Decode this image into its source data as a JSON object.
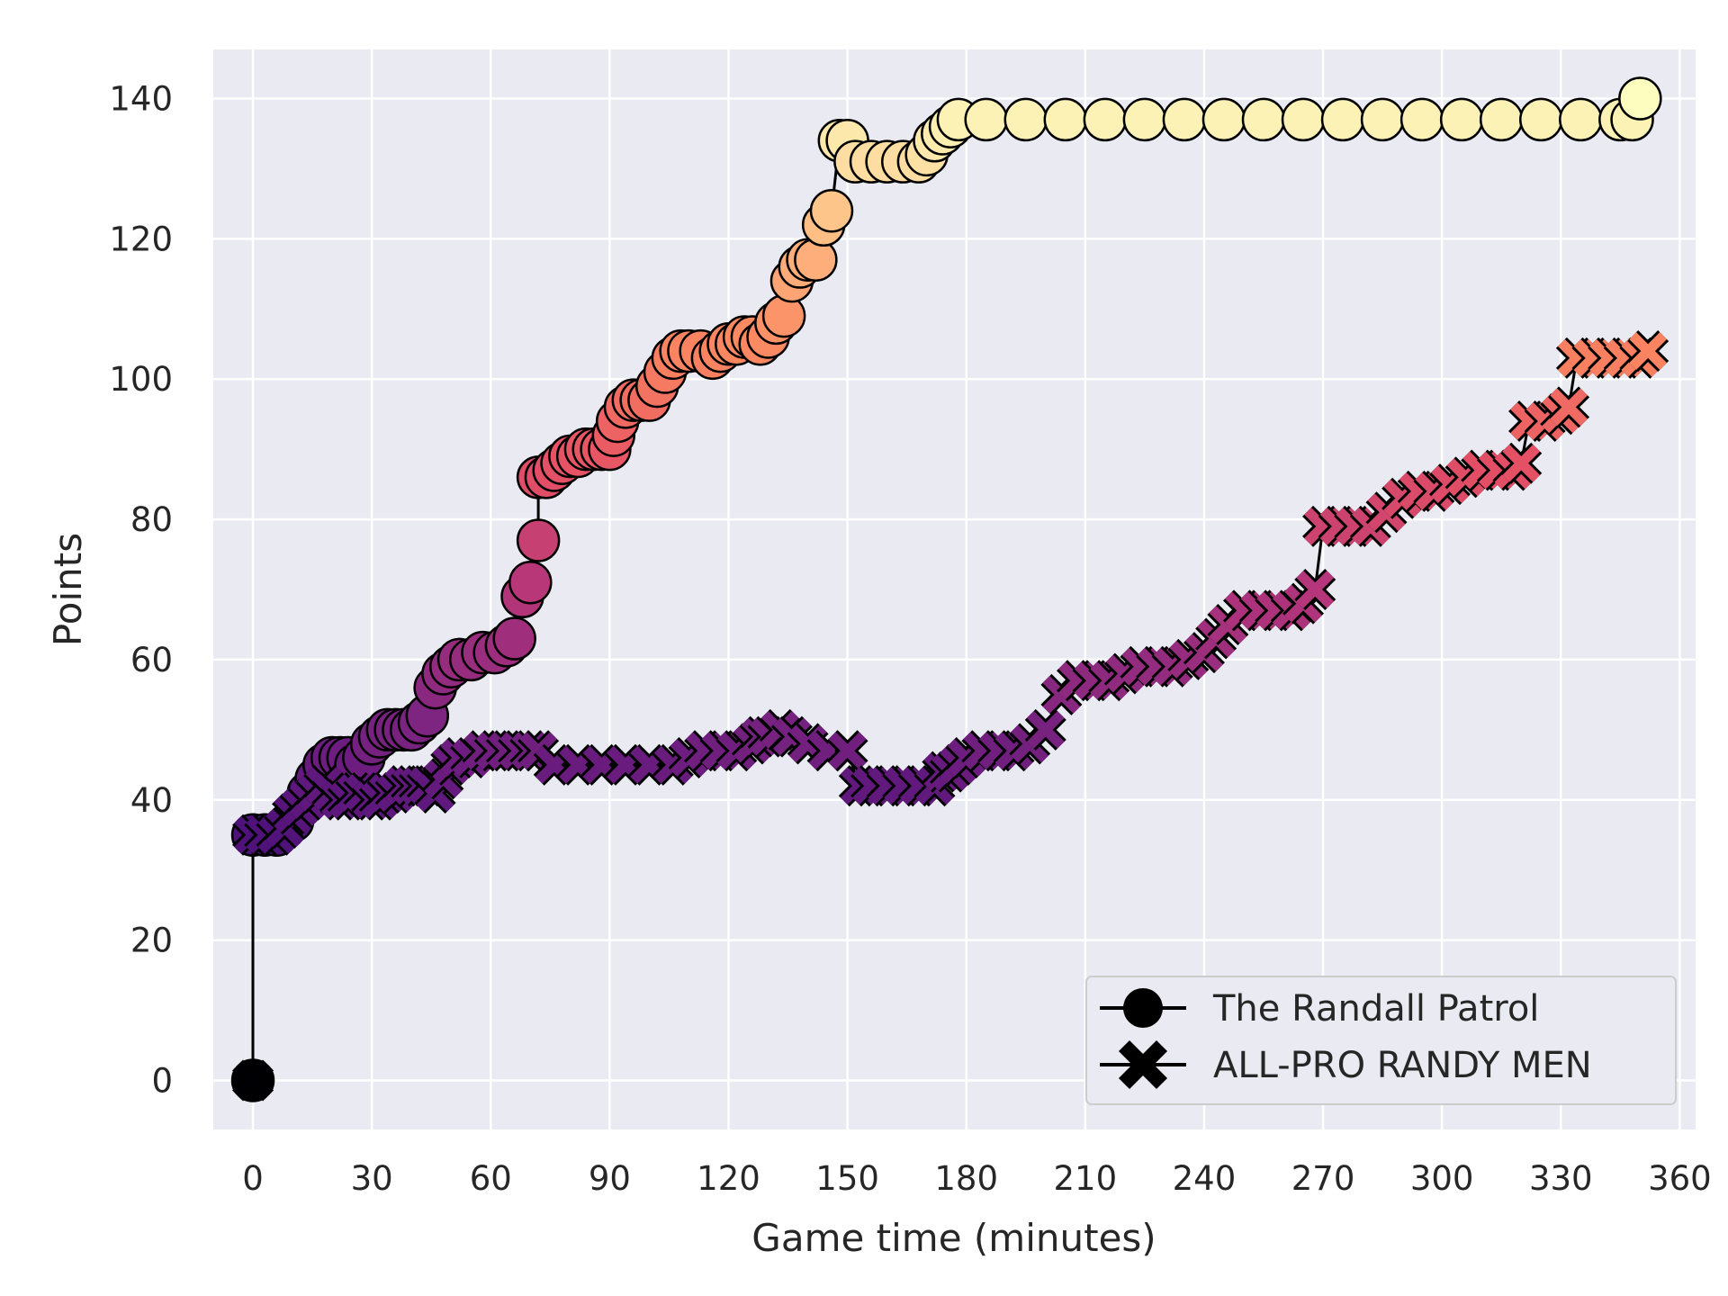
{
  "chart_data": {
    "type": "scatter",
    "xlabel": "Game time (minutes)",
    "ylabel": "Points",
    "xlim": [
      -10,
      364
    ],
    "ylim": [
      -7,
      147
    ],
    "xticks": [
      0,
      30,
      60,
      90,
      120,
      150,
      180,
      210,
      240,
      270,
      300,
      330,
      360
    ],
    "yticks": [
      0,
      20,
      40,
      60,
      80,
      100,
      120,
      140
    ],
    "grid": true,
    "legend_position": "bottom-right",
    "colormap": "magma",
    "colors": {
      "background": "#eaeaf2",
      "grid": "#ffffff",
      "marker_edge": "#000000"
    },
    "series": [
      {
        "name": "The Randall Patrol",
        "marker": "circle",
        "points": [
          [
            0,
            0
          ],
          [
            0,
            35
          ],
          [
            3,
            35
          ],
          [
            6,
            35
          ],
          [
            8,
            36
          ],
          [
            10,
            37
          ],
          [
            12,
            39
          ],
          [
            14,
            41
          ],
          [
            16,
            43
          ],
          [
            18,
            45
          ],
          [
            20,
            46
          ],
          [
            22,
            46
          ],
          [
            24,
            46
          ],
          [
            26,
            45
          ],
          [
            28,
            46
          ],
          [
            30,
            48
          ],
          [
            32,
            49
          ],
          [
            34,
            50
          ],
          [
            36,
            50
          ],
          [
            38,
            50
          ],
          [
            40,
            50
          ],
          [
            42,
            51
          ],
          [
            44,
            52
          ],
          [
            46,
            56
          ],
          [
            48,
            58
          ],
          [
            50,
            59
          ],
          [
            52,
            60
          ],
          [
            55,
            60
          ],
          [
            58,
            61
          ],
          [
            61,
            61
          ],
          [
            64,
            62
          ],
          [
            66,
            63
          ],
          [
            68,
            69
          ],
          [
            70,
            71
          ],
          [
            72,
            77
          ],
          [
            72,
            86
          ],
          [
            74,
            86
          ],
          [
            76,
            87
          ],
          [
            78,
            88
          ],
          [
            80,
            89
          ],
          [
            82,
            89
          ],
          [
            84,
            90
          ],
          [
            86,
            90
          ],
          [
            88,
            90
          ],
          [
            90,
            90
          ],
          [
            91,
            92
          ],
          [
            92,
            94
          ],
          [
            94,
            96
          ],
          [
            96,
            97
          ],
          [
            98,
            97
          ],
          [
            100,
            97
          ],
          [
            102,
            99
          ],
          [
            104,
            101
          ],
          [
            106,
            103
          ],
          [
            108,
            104
          ],
          [
            110,
            104
          ],
          [
            113,
            104
          ],
          [
            116,
            103
          ],
          [
            118,
            104
          ],
          [
            120,
            105
          ],
          [
            122,
            105
          ],
          [
            124,
            106
          ],
          [
            126,
            106
          ],
          [
            128,
            105
          ],
          [
            130,
            106
          ],
          [
            132,
            108
          ],
          [
            134,
            109
          ],
          [
            136,
            114
          ],
          [
            138,
            116
          ],
          [
            140,
            117
          ],
          [
            142,
            117
          ],
          [
            144,
            122
          ],
          [
            146,
            124
          ],
          [
            148,
            134
          ],
          [
            150,
            134
          ],
          [
            152,
            131
          ],
          [
            156,
            131
          ],
          [
            160,
            131
          ],
          [
            164,
            131
          ],
          [
            168,
            131
          ],
          [
            170,
            132
          ],
          [
            172,
            134
          ],
          [
            174,
            135
          ],
          [
            176,
            136
          ],
          [
            178,
            137
          ],
          [
            185,
            137
          ],
          [
            195,
            137
          ],
          [
            205,
            137
          ],
          [
            215,
            137
          ],
          [
            225,
            137
          ],
          [
            235,
            137
          ],
          [
            245,
            137
          ],
          [
            255,
            137
          ],
          [
            265,
            137
          ],
          [
            275,
            137
          ],
          [
            285,
            137
          ],
          [
            295,
            137
          ],
          [
            305,
            137
          ],
          [
            315,
            137
          ],
          [
            325,
            137
          ],
          [
            335,
            137
          ],
          [
            345,
            137
          ],
          [
            348,
            137
          ],
          [
            350,
            140
          ]
        ]
      },
      {
        "name": "ALL-PRO RANDY MEN",
        "marker": "x",
        "points": [
          [
            0,
            0
          ],
          [
            0,
            35
          ],
          [
            3,
            35
          ],
          [
            6,
            35
          ],
          [
            8,
            36
          ],
          [
            10,
            38
          ],
          [
            12,
            39
          ],
          [
            14,
            40
          ],
          [
            16,
            41
          ],
          [
            18,
            42
          ],
          [
            20,
            41
          ],
          [
            22,
            40
          ],
          [
            24,
            40
          ],
          [
            26,
            41
          ],
          [
            28,
            41
          ],
          [
            30,
            40
          ],
          [
            32,
            40
          ],
          [
            34,
            41
          ],
          [
            36,
            41
          ],
          [
            38,
            42
          ],
          [
            40,
            42
          ],
          [
            42,
            42
          ],
          [
            44,
            42
          ],
          [
            46,
            41
          ],
          [
            48,
            43
          ],
          [
            50,
            45
          ],
          [
            52,
            46
          ],
          [
            55,
            46
          ],
          [
            58,
            47
          ],
          [
            61,
            47
          ],
          [
            64,
            47
          ],
          [
            67,
            47
          ],
          [
            70,
            47
          ],
          [
            72,
            47
          ],
          [
            76,
            45
          ],
          [
            82,
            45
          ],
          [
            88,
            45
          ],
          [
            94,
            45
          ],
          [
            100,
            45
          ],
          [
            106,
            45
          ],
          [
            110,
            46
          ],
          [
            114,
            47
          ],
          [
            118,
            47
          ],
          [
            122,
            47
          ],
          [
            126,
            48
          ],
          [
            128,
            49
          ],
          [
            130,
            49
          ],
          [
            133,
            50
          ],
          [
            136,
            49
          ],
          [
            140,
            48
          ],
          [
            145,
            47
          ],
          [
            150,
            47
          ],
          [
            153,
            42
          ],
          [
            156,
            42
          ],
          [
            160,
            42
          ],
          [
            164,
            42
          ],
          [
            168,
            42
          ],
          [
            172,
            42
          ],
          [
            174,
            44
          ],
          [
            176,
            44
          ],
          [
            178,
            45
          ],
          [
            180,
            46
          ],
          [
            184,
            47
          ],
          [
            188,
            47
          ],
          [
            192,
            47
          ],
          [
            196,
            48
          ],
          [
            200,
            50
          ],
          [
            204,
            55
          ],
          [
            208,
            57
          ],
          [
            212,
            57
          ],
          [
            216,
            57
          ],
          [
            220,
            58
          ],
          [
            224,
            59
          ],
          [
            228,
            59
          ],
          [
            232,
            59
          ],
          [
            236,
            60
          ],
          [
            240,
            61
          ],
          [
            243,
            63
          ],
          [
            246,
            65
          ],
          [
            250,
            67
          ],
          [
            254,
            67
          ],
          [
            258,
            67
          ],
          [
            262,
            67
          ],
          [
            265,
            68
          ],
          [
            268,
            70
          ],
          [
            270,
            79
          ],
          [
            274,
            79
          ],
          [
            278,
            79
          ],
          [
            282,
            79
          ],
          [
            286,
            81
          ],
          [
            290,
            83
          ],
          [
            294,
            84
          ],
          [
            298,
            84
          ],
          [
            302,
            85
          ],
          [
            306,
            86
          ],
          [
            310,
            87
          ],
          [
            314,
            87
          ],
          [
            318,
            87
          ],
          [
            320,
            88
          ],
          [
            322,
            94
          ],
          [
            326,
            94
          ],
          [
            330,
            95
          ],
          [
            332,
            96
          ],
          [
            334,
            103
          ],
          [
            338,
            103
          ],
          [
            342,
            103
          ],
          [
            346,
            103
          ],
          [
            350,
            103
          ],
          [
            352,
            104
          ]
        ]
      }
    ]
  }
}
